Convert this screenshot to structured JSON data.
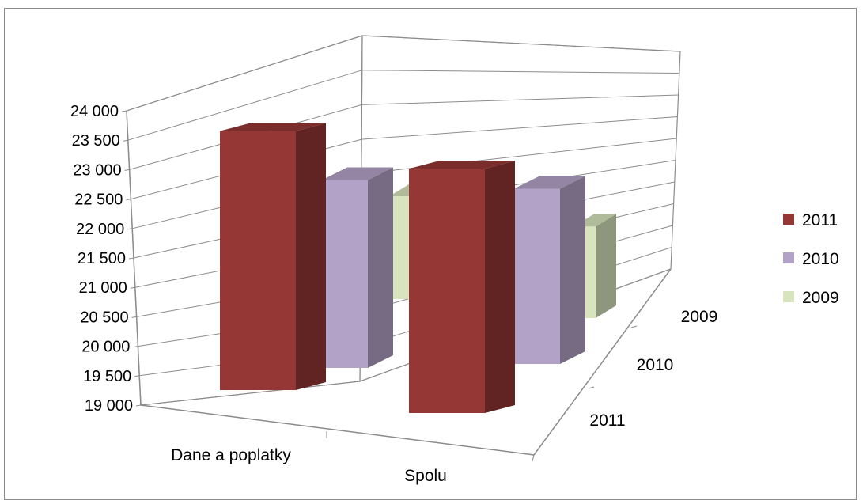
{
  "chart_data": {
    "type": "bar",
    "subtype": "3d-clustered-column",
    "title": "",
    "xlabel": "",
    "ylabel": "",
    "categories": [
      "Dane a poplatky",
      "Spolu"
    ],
    "depth_labels": [
      "2011",
      "2010",
      "2009"
    ],
    "y_tick_labels": [
      "19 000",
      "19 500",
      "20 000",
      "20 500",
      "21 000",
      "21 500",
      "22 000",
      "22 500",
      "23 000",
      "23 500",
      "24 000"
    ],
    "ylim": [
      19000,
      24000
    ],
    "grid": true,
    "legend_position": "right",
    "series": [
      {
        "name": "2011",
        "color": "#953735",
        "values": [
          23400,
          23150
        ]
      },
      {
        "name": "2010",
        "color": "#b3a2c7",
        "values": [
          22700,
          22450
        ]
      },
      {
        "name": "2009",
        "color": "#d7e4bd",
        "values": [
          21300,
          21050
        ]
      }
    ]
  }
}
